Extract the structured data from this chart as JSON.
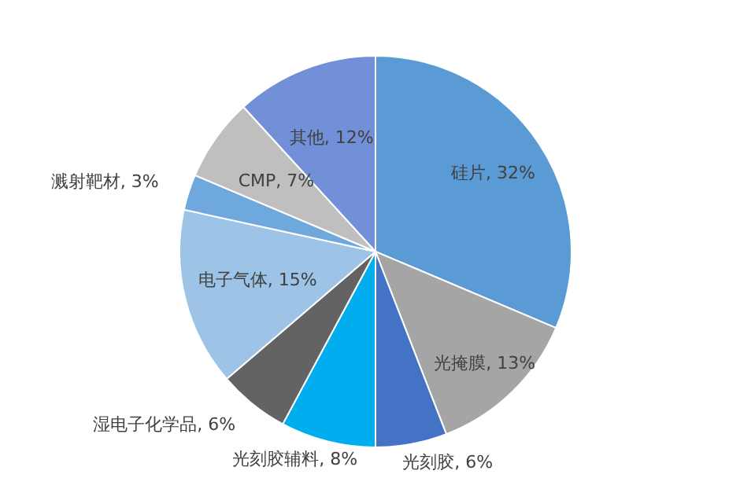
{
  "chart_data": {
    "type": "pie",
    "categories": [
      "硅片",
      "光掩膜",
      "光刻胶",
      "光刻胶辅料",
      "湿电子化学品",
      "电子气体",
      "溅射靶材",
      "CMP",
      "其他"
    ],
    "values": [
      32,
      13,
      6,
      8,
      6,
      15,
      3,
      7,
      12
    ],
    "value_labels": [
      ", 32%",
      ", 13%",
      ", 6%",
      ", 8%",
      ", 6%",
      ", 15%",
      ", 3%",
      ", 7%",
      ", 12%"
    ],
    "colors": [
      "#5b9bd5",
      "#a5a5a5",
      "#4472c4",
      "#00adef",
      "#636363",
      "#9dc3e6",
      "#6fa8dc",
      "#bfbfbf",
      "#7290d8"
    ],
    "legend": false
  }
}
